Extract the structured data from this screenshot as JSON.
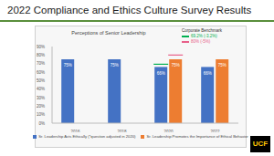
{
  "slide": {
    "title": "2022 Compliance and Ethics Culture Survey Results",
    "logo": "UCF"
  },
  "chart_data": {
    "type": "bar",
    "title": "Perceptions of Senior Leadership",
    "categories": [
      "2016",
      "2018",
      "2020",
      "2022"
    ],
    "series": [
      {
        "name": "Sr. Leadership Acts Ethically (*question adjusted in 2020)",
        "color": "#4472c4",
        "values": [
          75,
          75,
          66,
          66
        ],
        "value_labels": [
          "75%",
          "75%",
          "66%",
          "66%"
        ]
      },
      {
        "name": "Sr. Leadership Promotes the Importance of Ethical Behavior",
        "color": "#ed7d31",
        "values": [
          null,
          null,
          75,
          75
        ],
        "value_labels": [
          null,
          null,
          "75%",
          "75%"
        ]
      }
    ],
    "ylim": [
      0,
      90
    ],
    "yticks": [
      {
        "value": 0,
        "label": "0%"
      },
      {
        "value": 10,
        "label": "10%"
      },
      {
        "value": 20,
        "label": "20%"
      },
      {
        "value": 30,
        "label": "30%"
      },
      {
        "value": 40,
        "label": "40%"
      },
      {
        "value": 50,
        "label": "50%"
      },
      {
        "value": 60,
        "label": "60%"
      },
      {
        "value": 70,
        "label": "70%"
      },
      {
        "value": 80,
        "label": "80%"
      },
      {
        "value": 90,
        "label": "90%"
      }
    ],
    "grid": false,
    "data_labels": true,
    "legend": "bottom",
    "benchmark_title": "Corporate Benchmark",
    "benchmarks": [
      {
        "series": 0,
        "category": "2020",
        "value": 69.2,
        "label": "69.2% (-3.2%)",
        "color": "#00b050"
      },
      {
        "series": 1,
        "category": "2020",
        "value": 80,
        "label": "80% (-5%)",
        "color": "#e8608a"
      }
    ]
  }
}
